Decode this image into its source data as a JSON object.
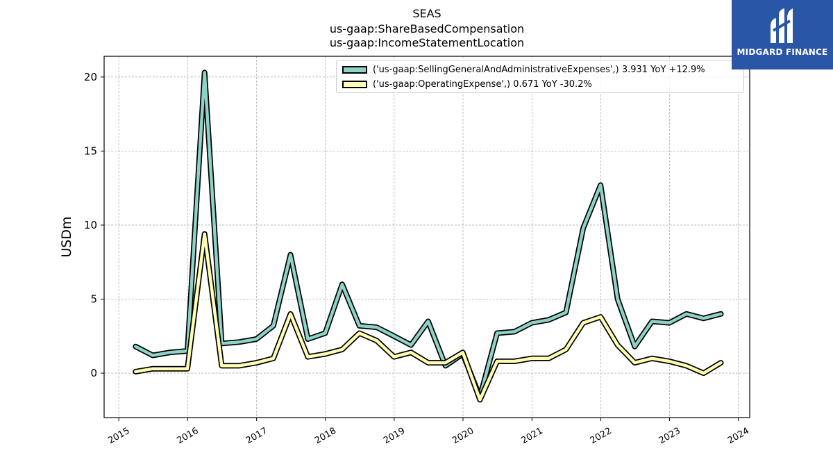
{
  "title": {
    "line1": "SEAS",
    "line2": "us-gaap:ShareBasedCompensation",
    "line3": "us-gaap:IncomeStatementLocation"
  },
  "logo": {
    "text": "MIDGARD FINANCE",
    "icon": "midgard-logo-icon",
    "color": "#2a56a8"
  },
  "chart_data": {
    "type": "line",
    "ylabel": "USDm",
    "xlabel": "",
    "xlim": [
      "2014-10-15",
      "2024-03-01"
    ],
    "ylim": [
      -3,
      21.4
    ],
    "x_ticks": [
      "2015",
      "2016",
      "2017",
      "2018",
      "2019",
      "2020",
      "2021",
      "2022",
      "2023",
      "2024"
    ],
    "y_ticks": [
      0,
      5,
      10,
      15,
      20
    ],
    "grid": true,
    "legend_position": "top-right",
    "x": [
      "2015-03-31",
      "2015-06-30",
      "2015-09-30",
      "2015-12-31",
      "2016-03-31",
      "2016-06-30",
      "2016-09-30",
      "2016-12-31",
      "2017-03-31",
      "2017-06-30",
      "2017-09-30",
      "2017-12-31",
      "2018-03-31",
      "2018-06-30",
      "2018-09-30",
      "2018-12-31",
      "2019-03-31",
      "2019-06-30",
      "2019-09-30",
      "2019-12-31",
      "2020-03-31",
      "2020-06-30",
      "2020-09-30",
      "2020-12-31",
      "2021-03-31",
      "2021-06-30",
      "2021-09-30",
      "2021-12-31",
      "2022-03-31",
      "2022-06-30",
      "2022-09-30",
      "2022-12-31",
      "2023-03-31",
      "2023-06-30",
      "2023-09-30"
    ],
    "series": [
      {
        "name": "('us-gaap:SellingGeneralAndAdministrativeExpenses',) 3.931 YoY +12.9%",
        "color": "#8dd3c7",
        "values": [
          1.8,
          1.2,
          1.4,
          1.5,
          20.3,
          2.0,
          2.1,
          2.3,
          3.2,
          8.0,
          2.3,
          2.7,
          6.0,
          3.2,
          3.1,
          2.5,
          1.9,
          3.5,
          0.5,
          1.3,
          -1.6,
          2.7,
          2.8,
          3.4,
          3.6,
          4.1,
          9.8,
          12.7,
          5.0,
          1.8,
          3.5,
          3.4,
          4.0,
          3.7,
          4.0
        ]
      },
      {
        "name": "('us-gaap:OperatingExpense',) 0.671 YoY -30.2%",
        "color": "#ffffb3",
        "values": [
          0.1,
          0.3,
          0.3,
          0.3,
          9.4,
          0.5,
          0.5,
          0.7,
          1.0,
          4.0,
          1.1,
          1.3,
          1.6,
          2.7,
          2.2,
          1.1,
          1.4,
          0.7,
          0.7,
          1.4,
          -1.8,
          0.8,
          0.8,
          1.0,
          1.0,
          1.6,
          3.4,
          3.8,
          1.9,
          0.7,
          1.0,
          0.8,
          0.5,
          0.0,
          0.7
        ]
      }
    ]
  }
}
